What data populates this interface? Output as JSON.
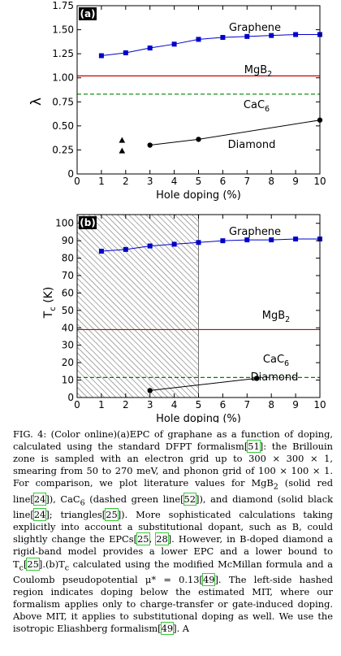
{
  "chart_data": [
    {
      "type": "line",
      "panel_label": "(a)",
      "xlabel": "Hole doping (%)",
      "ylabel": "λ",
      "xlim": [
        0,
        10
      ],
      "ylim": [
        0,
        1.75
      ],
      "xticks": [
        0,
        1,
        2,
        3,
        4,
        5,
        6,
        7,
        8,
        9,
        10
      ],
      "yticks": [
        0,
        0.25,
        0.5,
        0.75,
        1.0,
        1.25,
        1.5,
        1.75
      ],
      "ytick_labels": [
        "0",
        "0.25",
        "0.50",
        "0.75",
        "1.00",
        "1.25",
        "1.50",
        "1.75"
      ],
      "series": [
        {
          "name": "Graphene",
          "color": "#0000cc",
          "marker": "square",
          "x": [
            1,
            2,
            3,
            4,
            5,
            6,
            7,
            8,
            9,
            10
          ],
          "y": [
            1.23,
            1.26,
            1.31,
            1.35,
            1.4,
            1.42,
            1.43,
            1.44,
            1.45,
            1.45
          ]
        },
        {
          "name": "Diamond",
          "color": "#000000",
          "marker": "circle",
          "x": [
            3,
            5,
            10
          ],
          "y": [
            0.3,
            0.36,
            0.56
          ]
        },
        {
          "name": "",
          "color": "#000000",
          "marker": "triangle",
          "x": [
            1.85,
            1.85
          ],
          "y": [
            0.35,
            0.24
          ]
        }
      ],
      "hlines": [
        {
          "name": "MgB2",
          "y": 1.02,
          "color": "#cc0000",
          "style": "solid"
        },
        {
          "name": "CaC6",
          "y": 0.83,
          "color": "#008000",
          "style": "dashed"
        }
      ]
    },
    {
      "type": "line",
      "panel_label": "(b)",
      "xlabel": "Hole doping (%)",
      "ylabel": "Tc (K)",
      "xlim": [
        0,
        10
      ],
      "ylim": [
        0,
        105
      ],
      "xticks": [
        0,
        1,
        2,
        3,
        4,
        5,
        6,
        7,
        8,
        9,
        10
      ],
      "yticks": [
        0,
        10,
        20,
        30,
        40,
        50,
        60,
        70,
        80,
        90,
        100
      ],
      "shaded_region_x": [
        0,
        5
      ],
      "series": [
        {
          "name": "Graphene",
          "color": "#0000cc",
          "marker": "square",
          "x": [
            1,
            2,
            3,
            4,
            5,
            6,
            7,
            8,
            9,
            10
          ],
          "y": [
            84,
            85,
            87,
            88,
            89,
            90,
            90.5,
            90.5,
            91,
            91
          ]
        },
        {
          "name": "Diamond",
          "color": "#000000",
          "marker": "circle",
          "x": [
            3,
            7.4
          ],
          "y": [
            4,
            11
          ]
        }
      ],
      "hlines": [
        {
          "name": "MgB2",
          "y": 39,
          "color": "#cc0000",
          "style": "solid"
        },
        {
          "name": "CaC6",
          "y": 11.5,
          "color": "#008000",
          "style": "dashed"
        }
      ]
    }
  ],
  "labels": {
    "graphene": "Graphene",
    "mgb2_main": "MgB",
    "mgb2_sub": "2",
    "cac6_main": "CaC",
    "cac6_sub": "6",
    "diamond": "Diamond",
    "ylabel_b_main": "T",
    "ylabel_b_sub": "c",
    "ylabel_b_rest": " (K)"
  },
  "caption": {
    "p1": "FIG. 4:  (Color online)(a)EPC of graphane as a function of doping, calculated using the standard DFPT formalism[",
    "r1": "51",
    "p2": "]: the Brillouin zone is sampled with an electron grid up to 300 × 300 × 1, smearing from 50 to 270 meV, and phonon grid of 100 × 100 × 1.  For comparison, we plot literature values for MgB",
    "p2sub": "2",
    "p3": " (solid red line[",
    "r2": "24",
    "p4": "]), CaC",
    "p4sub": "6",
    "p5": " (dashed green line[",
    "r3": "52",
    "p6": "]), and diamond (solid black line[",
    "r4": "24",
    "p7": "]; triangles[",
    "r5": "25",
    "p8": "]). More sophisticated calculations taking explicitly into account a substitutional dopant, such as B, could slightly change the EPCs[",
    "r6": "25",
    "p9": ", ",
    "r7": "28",
    "p10": "].  However, in B-doped diamond a rigid-band model provides a lower EPC and a lower bound to T",
    "p10sub": "c",
    "p11": "[",
    "r8": "25",
    "p12": "].(b)T",
    "p12sub": "c",
    "p13": " calculated using the modified McMillan formula and a Coulomb pseudopotential μ* = 0.13[",
    "r9": "49",
    "p14": "].  The left-side hashed region indicates doping below the estimated MIT, where our formalism applies only to charge-transfer or gate-induced doping. Above MIT, it applies to substitutional doping as well. We use the isotropic Eliashberg formalism[",
    "r10": "49",
    "p15": "]. A"
  }
}
